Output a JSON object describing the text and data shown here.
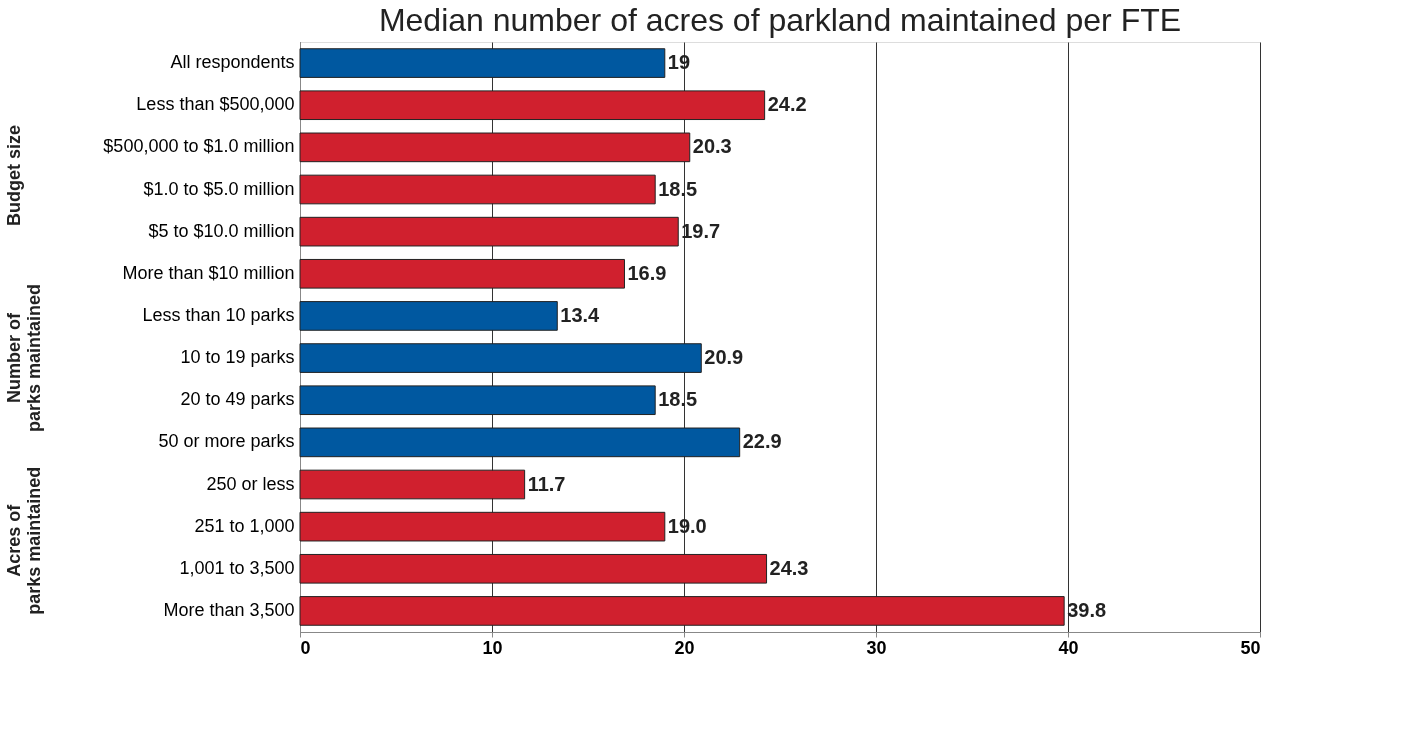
{
  "chart_data": {
    "type": "bar",
    "orientation": "horizontal",
    "title": "Median number of acres of parkland maintained per FTE",
    "categories": [
      "All respondents",
      "Less than $500,000",
      "$500,000 to $1.0 million",
      "$1.0 to $5.0 million",
      "$5 to $10.0 million",
      "More than $10 million",
      "Less than 10 parks",
      "10 to 19 parks",
      "20 to 49 parks",
      "50 or more parks",
      "250 or less",
      "251 to 1,000",
      "1,001 to 3,500",
      "More than 3,500"
    ],
    "values": [
      19,
      24.2,
      20.3,
      18.5,
      19.7,
      16.9,
      13.4,
      20.9,
      18.5,
      22.9,
      11.7,
      19.0,
      24.3,
      39.8
    ],
    "value_labels": [
      "19",
      "24.2",
      "20.3",
      "18.5",
      "19.7",
      "16.9",
      "13.4",
      "20.9",
      "18.5",
      "22.9",
      "11.7",
      "19.0",
      "24.3",
      "39.8"
    ],
    "colors": [
      "#0058a0",
      "#d0202e",
      "#d0202e",
      "#d0202e",
      "#d0202e",
      "#d0202e",
      "#0058a0",
      "#0058a0",
      "#0058a0",
      "#0058a0",
      "#d0202e",
      "#d0202e",
      "#d0202e",
      "#d0202e"
    ],
    "xlim": [
      0,
      50
    ],
    "xticks": [
      0,
      10,
      20,
      30,
      40,
      50
    ],
    "grid": "x",
    "annotations": [
      "Budget size",
      "Number of parks maintained",
      "Acres of parks maintained"
    ]
  }
}
